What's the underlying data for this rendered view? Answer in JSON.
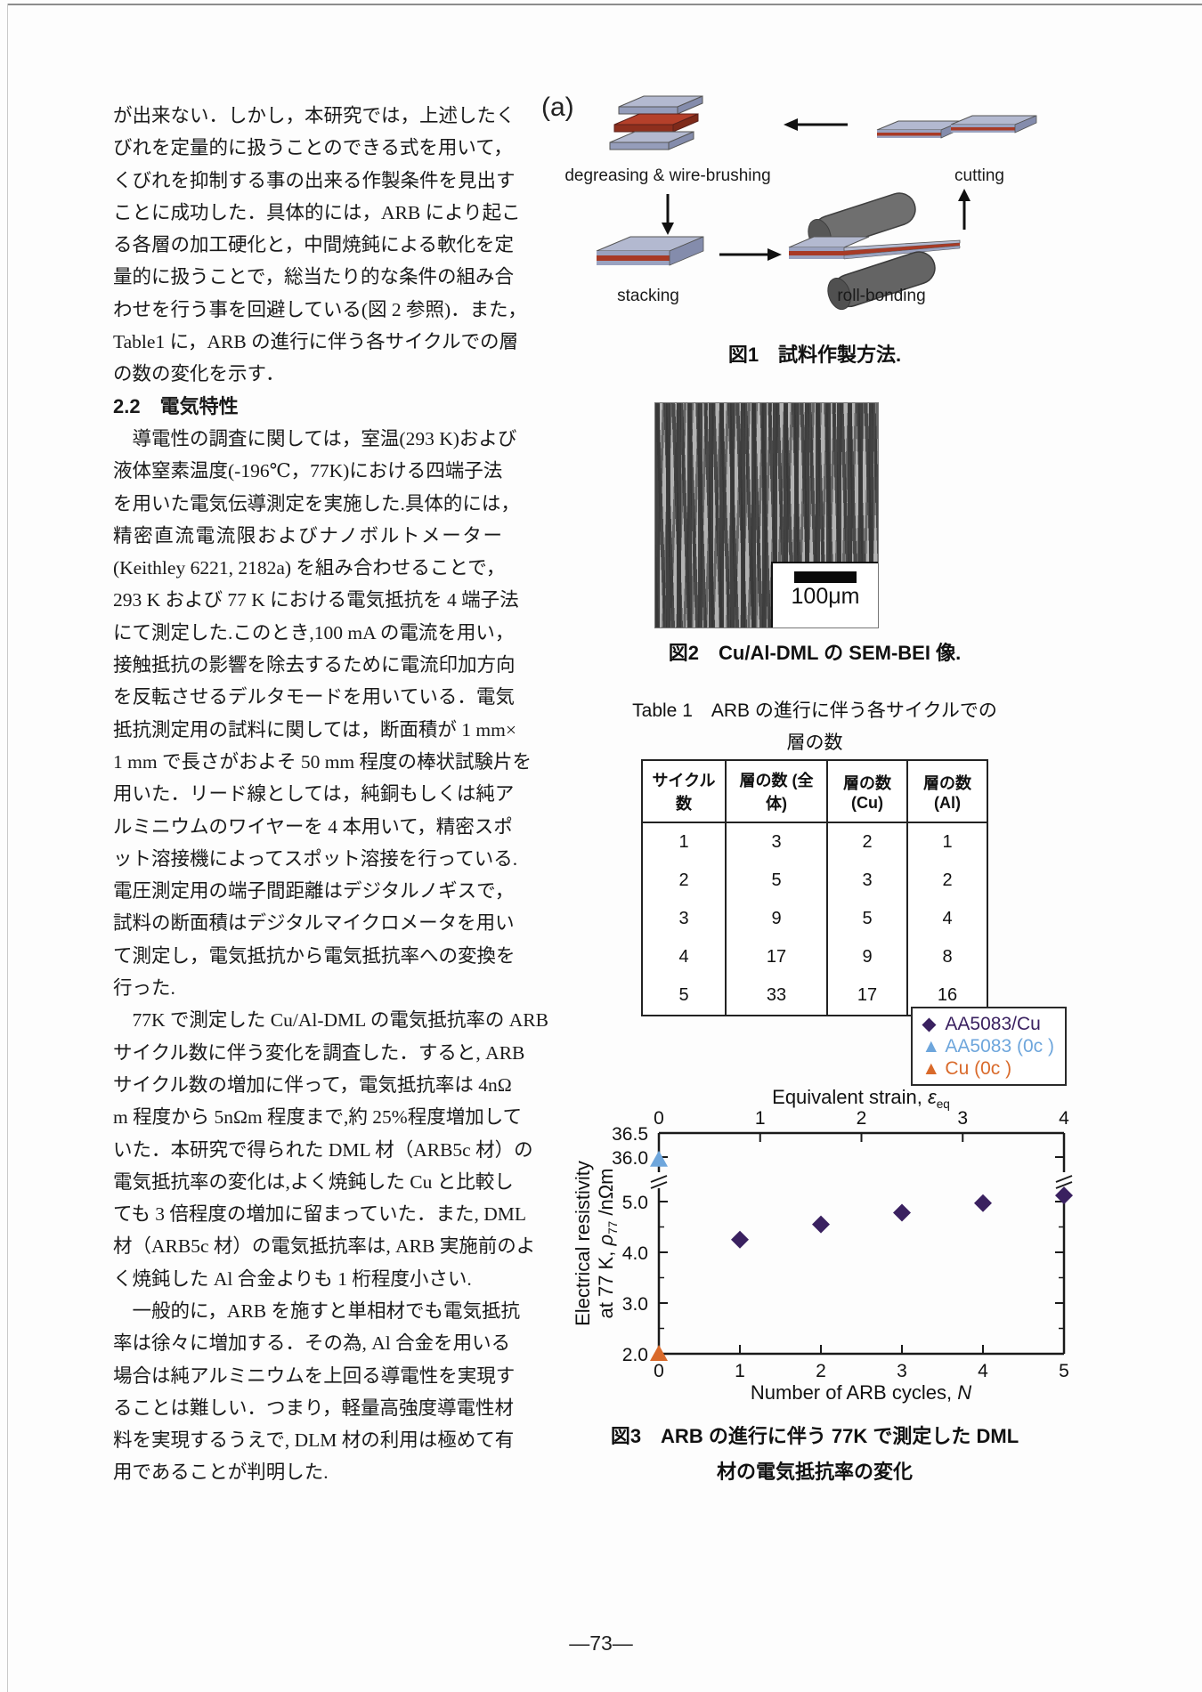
{
  "page": {
    "number_label": "―73―"
  },
  "left_column": {
    "para1": [
      "が出来ない．しかし，本研究では，上述したく",
      "びれを定量的に扱うことのできる式を用いて，",
      "くびれを抑制する事の出来る作製条件を見出す",
      "ことに成功した．具体的には，ARB により起こ",
      "る各層の加工硬化と，中間焼鈍による軟化を定",
      "量的に扱うことで，総当たり的な条件の組み合",
      "わせを行う事を回避している(図 2 参照)．また，",
      "Table1 に，ARB の進行に伴う各サイクルでの層",
      "の数の変化を示す．"
    ],
    "heading": "2.2　電気特性",
    "para2": [
      "　導電性の調査に関しては，室温(293 K)および",
      "液体窒素温度(-196℃，77K)における四端子法",
      "を用いた電気伝導測定を実施した.具体的には，",
      "精密直流電流限およびナノボルトメーター",
      "(Keithley 6221, 2182a) を組み合わせることで，",
      "293 K および 77 K における電気抵抗を 4 端子法",
      "にて測定した.このとき,100 mA の電流を用い，",
      "接触抵抗の影響を除去するために電流印加方向",
      "を反転させるデルタモードを用いている．電気",
      "抵抗測定用の試料に関しては，断面積が 1 mm×",
      "1 mm で長さがおよそ 50 mm 程度の棒状試験片を",
      "用いた．リード線としては，純銅もしくは純ア",
      "ルミニウムのワイヤーを 4 本用いて，精密スポ",
      "ット溶接機によってスポット溶接を行っている.",
      "電圧測定用の端子間距離はデジタルノギスで，",
      "試料の断面積はデジタルマイクロメータを用い",
      "て測定し，電気抵抗から電気抵抗率への変換を",
      "行った."
    ],
    "para3": [
      "　77K で測定した Cu/Al-DML の電気抵抗率の ARB",
      "サイクル数に伴う変化を調査した．すると, ARB",
      "サイクル数の増加に伴って，電気抵抗率は 4nΩ",
      "m 程度から 5nΩm 程度まで,約 25%程度増加して",
      "いた．本研究で得られた DML 材（ARB5c 材）の",
      "電気抵抗率の変化は,よく焼鈍した Cu と比較し",
      "ても 3 倍程度の増加に留まっていた．また, DML",
      "材（ARB5c 材）の電気抵抗率は, ARB 実施前のよ",
      "く焼鈍した Al 合金よりも 1 桁程度小さい."
    ],
    "para4": [
      "　一般的に，ARB を施すと単相材でも電気抵抗",
      "率は徐々に増加する．その為, Al 合金を用いる",
      "場合は純アルミニウムを上回る導電性を実現す",
      "ることは難しい．つまり，軽量高強度導電性材",
      "料を実現するうえで, DLM 材の利用は極めて有",
      "用であることが判明した."
    ]
  },
  "figure1": {
    "panel_label": "(a)",
    "steps": {
      "degreasing": "degreasing & wire-brushing",
      "cutting": "cutting",
      "stacking": "stacking",
      "rollbonding": "roll-bonding"
    },
    "caption": "図1　試料作製方法.",
    "colors": {
      "plate_gray": "#aab1c9",
      "plate_red": "#b23b26",
      "roller_gray": "#6f6f6f"
    }
  },
  "figure2": {
    "scale_bar_label": "100μm",
    "caption": "図2　Cu/Al-DML の SEM-BEI 像."
  },
  "table1": {
    "title_line1": "Table 1　ARB の進行に伴う各サイクルでの",
    "title_line2": "層の数",
    "headers": [
      "サイクル数",
      "層の数 (全体)",
      "層の数 (Cu)",
      "層の数 (Al)"
    ],
    "rows": [
      [
        "1",
        "3",
        "2",
        "1"
      ],
      [
        "2",
        "5",
        "3",
        "2"
      ],
      [
        "3",
        "9",
        "5",
        "4"
      ],
      [
        "4",
        "17",
        "9",
        "8"
      ],
      [
        "5",
        "33",
        "17",
        "16"
      ]
    ]
  },
  "figure3": {
    "caption_line1": "図3　ARB の進行に伴う 77K で測定した DML",
    "caption_line2": "材の電気抵抗率の変化",
    "top_axis_label": {
      "main": "Equivalent strain, ",
      "symbol": "ε",
      "sub": "eq"
    },
    "y_axis_label": {
      "line1": "Electrical resistivity",
      "line2_pre": "at 77 K, ",
      "symbol": "ρ",
      "sub": "77",
      "post": " /nΩm"
    },
    "x_axis_label": {
      "main": "Number of ARB cycles, ",
      "symbol": "N"
    }
  },
  "chart_data": {
    "type": "scatter",
    "title": "",
    "xlabel": "Number of ARB cycles, N",
    "ylabel": "Electrical resistivity at 77 K, ρ77 /nΩm",
    "top_xlabel": "Equivalent strain, εeq",
    "x_axis_bottom": {
      "ticks": [
        0,
        1,
        2,
        3,
        4,
        5
      ],
      "range": [
        0,
        5
      ]
    },
    "x_axis_top": {
      "ticks": [
        0,
        1,
        2,
        3,
        4
      ],
      "range": [
        0,
        4
      ]
    },
    "y_axis": {
      "tick_labels": [
        "36.5",
        "36.0",
        "5.0",
        "4.0",
        "3.0",
        "2.0"
      ],
      "minor_ticks": [
        2.5,
        3.5,
        4.5,
        5.5
      ],
      "axis_break": true,
      "break_between": [
        5.6,
        35.8
      ],
      "range_low": [
        2.0,
        5.6
      ],
      "range_high": [
        35.8,
        36.5
      ]
    },
    "grid": false,
    "legend_position": "top-right",
    "series": [
      {
        "name": "AA5083/Cu",
        "marker": "diamond",
        "color": "#3a2160",
        "points": [
          [
            1,
            4.25
          ],
          [
            2,
            4.55
          ],
          [
            3,
            4.78
          ],
          [
            4,
            4.97
          ],
          [
            5,
            5.12
          ]
        ]
      },
      {
        "name": "AA5083 (0c )",
        "marker": "triangle",
        "color": "#6ea6dc",
        "points": [
          [
            0,
            35.95
          ]
        ]
      },
      {
        "name": "Cu (0c )",
        "marker": "triangle",
        "color": "#d96a2b",
        "points": [
          [
            0,
            2.0
          ]
        ]
      }
    ]
  }
}
